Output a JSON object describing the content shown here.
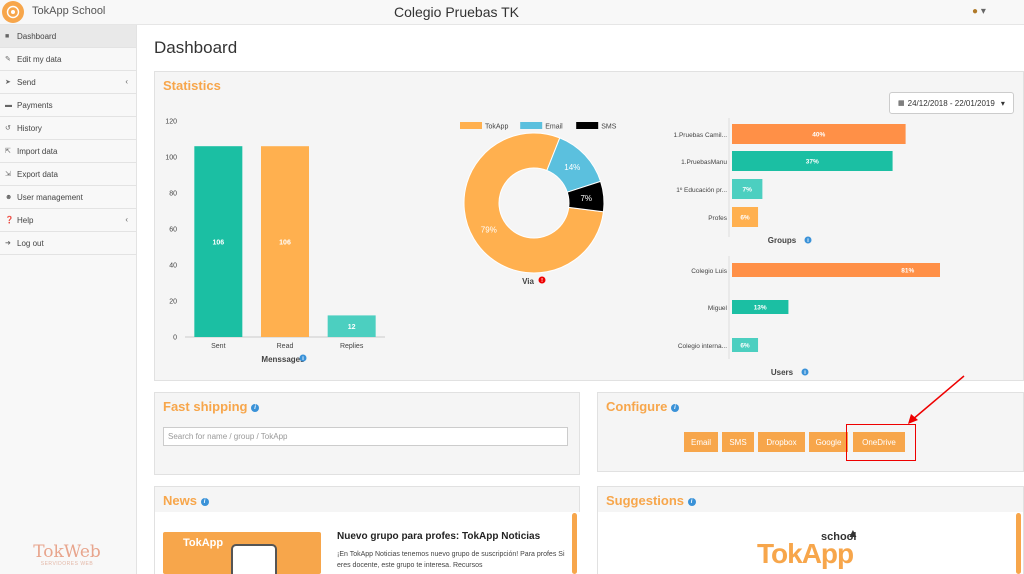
{
  "header": {
    "app_name": "TokApp School",
    "school_name": "Colegio Pruebas TK",
    "user_icon": "user-icon"
  },
  "sidebar": {
    "items": [
      {
        "label": "Dashboard",
        "icon": "dashboard-icon"
      },
      {
        "label": "Edit my data",
        "icon": "edit-icon"
      },
      {
        "label": "Send",
        "icon": "send-icon"
      },
      {
        "label": "Payments",
        "icon": "credit-card-icon"
      },
      {
        "label": "History",
        "icon": "history-icon"
      },
      {
        "label": "Import data",
        "icon": "import-icon"
      },
      {
        "label": "Export data",
        "icon": "export-icon"
      },
      {
        "label": "User management",
        "icon": "users-icon"
      },
      {
        "label": "Help",
        "icon": "help-icon"
      },
      {
        "label": "Log out",
        "icon": "logout-icon"
      }
    ],
    "footer_brand": "TokWeb",
    "footer_sub": "SERVIDORES WEB"
  },
  "main": {
    "title": "Dashboard",
    "statistics": {
      "title": "Statistics",
      "date_range": "24/12/2018 - 22/01/2019"
    },
    "fast_shipping": {
      "title": "Fast shipping",
      "placeholder": "Search for name / group / TokApp"
    },
    "configure": {
      "title": "Configure",
      "buttons": [
        "Email",
        "SMS",
        "Dropbox",
        "Google",
        "OneDrive"
      ]
    },
    "news": {
      "title": "News",
      "image_label": "TokApp",
      "headline": "Nuevo grupo para profes: TokApp Noticias",
      "text": "¡En TokApp Noticias tenemos nuevo grupo de suscripción! Para profes   Si eres docente, este grupo te interesa. Recursos"
    },
    "suggestions": {
      "title": "Suggestions",
      "logo_text": "TokApp",
      "logo_small": "school"
    }
  },
  "colors": {
    "orange": "#F7A64B",
    "teal": "#1BBFA3",
    "light_teal": "#4CCFC0",
    "blue": "#5BC0DE",
    "dark_orange": "#FF9047",
    "black": "#000000"
  },
  "chart_data": [
    {
      "type": "bar",
      "title": "",
      "xlabel": "Menssages",
      "categories": [
        "Sent",
        "Read",
        "Replies"
      ],
      "values": [
        106,
        106,
        12
      ],
      "colors": [
        "#1BBFA3",
        "#FFB04F",
        "#4CCFC0"
      ],
      "ylim": [
        0,
        120
      ],
      "yticks": [
        0,
        20,
        40,
        60,
        80,
        100,
        120
      ]
    },
    {
      "type": "pie",
      "donut": true,
      "xlabel": "Via",
      "legend": [
        "TokApp",
        "Email",
        "SMS"
      ],
      "legend_position": "top",
      "values": [
        79,
        14,
        7
      ],
      "labels": [
        "79%",
        "14%",
        "7%"
      ],
      "colors": [
        "#FFB04F",
        "#5BC0DE",
        "#000000"
      ]
    },
    {
      "type": "bar",
      "orientation": "horizontal",
      "xlabel": "Groups",
      "categories": [
        "1.Pruebas Camil...",
        "1.PruebasManu",
        "1º Educación pr...",
        "Profes"
      ],
      "values": [
        40,
        37,
        7,
        6
      ],
      "labels": [
        "40%",
        "37%",
        "7%",
        "6%"
      ],
      "colors": [
        "#FF9047",
        "#1BBFA3",
        "#4CCFC0",
        "#FFB04F"
      ]
    },
    {
      "type": "bar",
      "orientation": "horizontal",
      "xlabel": "Users",
      "categories": [
        "Colegio Luis",
        "Miguel",
        "Colegio interna..."
      ],
      "values": [
        81,
        13,
        6
      ],
      "labels": [
        "81%",
        "13%",
        "6%"
      ],
      "colors": [
        "#FF9047",
        "#1BBFA3",
        "#4CCFC0"
      ]
    }
  ]
}
